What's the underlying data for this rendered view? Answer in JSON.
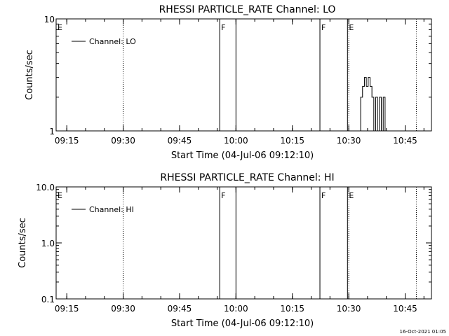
{
  "footer": {
    "timestamp": "16-Oct-2021 01:05"
  },
  "chart_data": [
    {
      "type": "line",
      "title": "RHESSI PARTICLE_RATE Channel: LO",
      "xlabel": "Start Time (04-Jul-06 09:12:10)",
      "ylabel": "Counts/sec",
      "y_scale": "log",
      "ylim": [
        1,
        10
      ],
      "y_ticks": [
        {
          "value": 1,
          "label": "1"
        },
        {
          "value": 10,
          "label": "10"
        }
      ],
      "xlim": [
        "09:12:10",
        "10:52:00"
      ],
      "x_ticks": [
        {
          "value": "09:15",
          "label": "09:15"
        },
        {
          "value": "09:30",
          "label": "09:30"
        },
        {
          "value": "09:45",
          "label": "09:45"
        },
        {
          "value": "10:00",
          "label": "10:00"
        },
        {
          "value": "10:15",
          "label": "10:15"
        },
        {
          "value": "10:30",
          "label": "10:30"
        },
        {
          "value": "10:45",
          "label": "10:45"
        }
      ],
      "legend": {
        "placement": "top-left",
        "entries": [
          "Channel: LO"
        ]
      },
      "series": [
        {
          "name": "Channel: LO",
          "x": [
            "10:32:40",
            "10:33:10",
            "10:33:40",
            "10:34:10",
            "10:34:40",
            "10:35:10",
            "10:35:40",
            "10:36:10",
            "10:36:40",
            "10:37:10",
            "10:37:40",
            "10:38:10",
            "10:38:40",
            "10:39:10",
            "10:39:40"
          ],
          "y": [
            1,
            2,
            2.5,
            3,
            2.5,
            3,
            2.5,
            2,
            1,
            2,
            1,
            2,
            1,
            2,
            1
          ]
        }
      ],
      "vertical_markers": [
        {
          "x": "09:12:10",
          "style": "solid",
          "label": "E"
        },
        {
          "x": "09:30:00",
          "style": "dotted",
          "label": ""
        },
        {
          "x": "09:55:40",
          "style": "solid",
          "label": "F"
        },
        {
          "x": "10:00:00",
          "style": "solid",
          "label": ""
        },
        {
          "x": "10:22:20",
          "style": "solid",
          "label": "F"
        },
        {
          "x": "10:29:40",
          "style": "solid",
          "label": "E"
        },
        {
          "x": "10:30:00",
          "style": "dotted",
          "label": ""
        },
        {
          "x": "10:48:00",
          "style": "dotted",
          "label": ""
        }
      ]
    },
    {
      "type": "line",
      "title": "RHESSI PARTICLE_RATE Channel: HI",
      "xlabel": "Start Time (04-Jul-06 09:12:10)",
      "ylabel": "Counts/sec",
      "y_scale": "log",
      "ylim": [
        0.1,
        10
      ],
      "y_ticks": [
        {
          "value": 0.1,
          "label": "0.1"
        },
        {
          "value": 1,
          "label": "1.0"
        },
        {
          "value": 10,
          "label": "10.0"
        }
      ],
      "xlim": [
        "09:12:10",
        "10:52:00"
      ],
      "x_ticks": [
        {
          "value": "09:15",
          "label": "09:15"
        },
        {
          "value": "09:30",
          "label": "09:30"
        },
        {
          "value": "09:45",
          "label": "09:45"
        },
        {
          "value": "10:00",
          "label": "10:00"
        },
        {
          "value": "10:15",
          "label": "10:15"
        },
        {
          "value": "10:30",
          "label": "10:30"
        },
        {
          "value": "10:45",
          "label": "10:45"
        }
      ],
      "legend": {
        "placement": "top-left",
        "entries": [
          "Channel: HI"
        ]
      },
      "series": [
        {
          "name": "Channel: HI",
          "x": [],
          "y": []
        }
      ],
      "vertical_markers": [
        {
          "x": "09:12:10",
          "style": "solid",
          "label": "E"
        },
        {
          "x": "09:30:00",
          "style": "dotted",
          "label": ""
        },
        {
          "x": "09:55:40",
          "style": "solid",
          "label": "F"
        },
        {
          "x": "10:00:00",
          "style": "solid",
          "label": ""
        },
        {
          "x": "10:22:20",
          "style": "solid",
          "label": "F"
        },
        {
          "x": "10:29:40",
          "style": "solid",
          "label": "E"
        },
        {
          "x": "10:30:00",
          "style": "dotted",
          "label": ""
        },
        {
          "x": "10:48:00",
          "style": "dotted",
          "label": ""
        }
      ]
    }
  ]
}
